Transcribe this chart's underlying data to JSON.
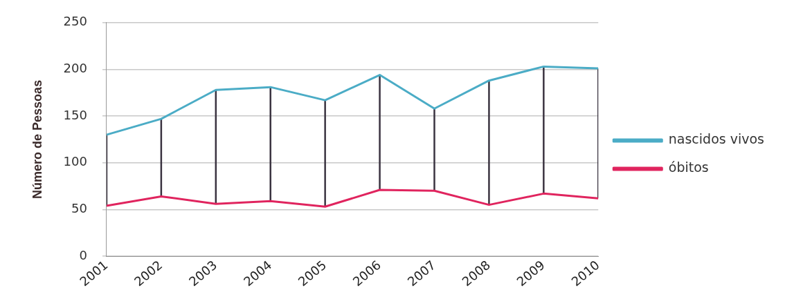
{
  "chart_data": {
    "type": "line",
    "ylabel": "Número de Pessoas",
    "x": [
      2001,
      2002,
      2003,
      2004,
      2005,
      2006,
      2007,
      2008,
      2009,
      2010
    ],
    "series": [
      {
        "name": "nascidos vivos",
        "color": "#4bacc6",
        "values": [
          130,
          147,
          178,
          181,
          167,
          194,
          158,
          188,
          203,
          201
        ]
      },
      {
        "name": "óbitos",
        "color": "#e0245e",
        "values": [
          54,
          64,
          56,
          59,
          53,
          71,
          70,
          55,
          67,
          62
        ]
      },
      {
        "color": "#3a3340",
        "x": [
          2001,
          2001
        ],
        "values": [
          54,
          130
        ]
      },
      {
        "color": "#3a3340",
        "x": [
          2002,
          2002
        ],
        "values": [
          64,
          147
        ]
      },
      {
        "color": "#3a3340",
        "x": [
          2003,
          2003
        ],
        "values": [
          56,
          178
        ]
      },
      {
        "color": "#3a3340",
        "x": [
          2004,
          2004
        ],
        "values": [
          59,
          181
        ]
      },
      {
        "color": "#3a3340",
        "x": [
          2005,
          2005
        ],
        "values": [
          53,
          167
        ]
      },
      {
        "color": "#3a3340",
        "x": [
          2006,
          2006
        ],
        "values": [
          71,
          194
        ]
      },
      {
        "color": "#3a3340",
        "x": [
          2007,
          2007
        ],
        "values": [
          70,
          158
        ]
      },
      {
        "color": "#3a3340",
        "x": [
          2008,
          2008
        ],
        "values": [
          55,
          188
        ]
      },
      {
        "color": "#3a3340",
        "x": [
          2009,
          2009
        ],
        "values": [
          67,
          203
        ]
      },
      {
        "color": "#3a3340",
        "x": [
          2010,
          2010
        ],
        "values": [
          62,
          201
        ]
      }
    ],
    "xlim": [
      2001,
      2010
    ],
    "xticks": [
      2001,
      2002,
      2003,
      2004,
      2005,
      2006,
      2007,
      2008,
      2009,
      2010
    ],
    "ylim": [
      0,
      250
    ],
    "yticks": [
      0,
      50,
      100,
      150,
      200,
      250
    ],
    "grid": "y",
    "legend": "right",
    "marker": "none",
    "line_style": "solid"
  }
}
